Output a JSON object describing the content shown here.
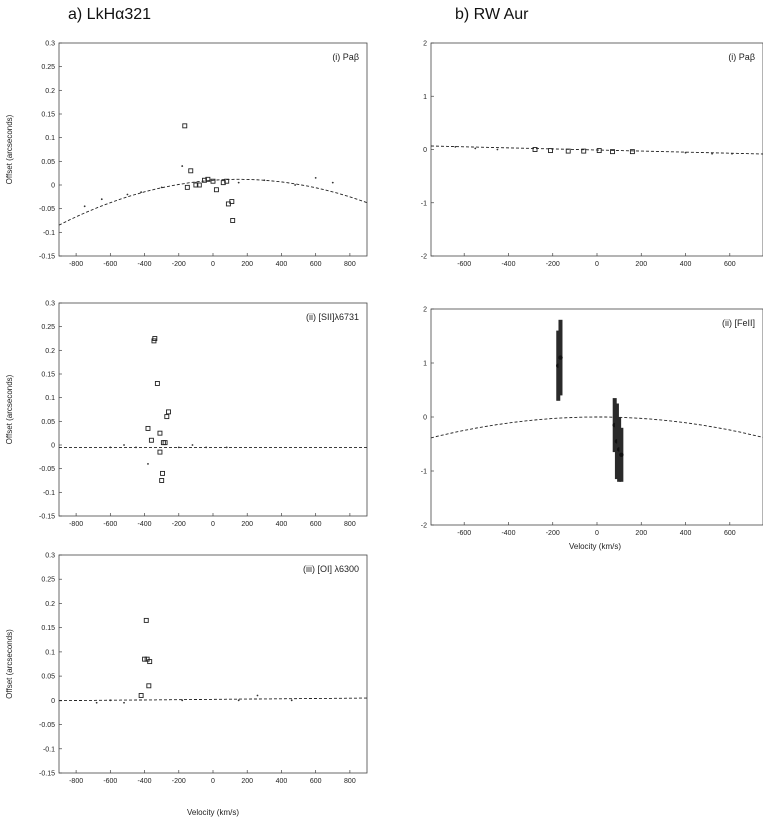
{
  "headings": {
    "left": "a) LkHα321",
    "right": "b) RW Aur"
  },
  "bottom_xlabel": "Velocity (km/s)",
  "chart_data": [
    {
      "id": "a-i",
      "type": "scatter",
      "label": "(i) Paβ",
      "ylabel": "Offset (arcseconds)",
      "xlabel": "",
      "xlim": [
        -900,
        900
      ],
      "ylim": [
        -0.15,
        0.3
      ],
      "xticks": [
        -800,
        -600,
        -400,
        -200,
        0,
        200,
        400,
        600,
        800
      ],
      "yticks": [
        -0.15,
        -0.1,
        -0.05,
        0,
        0.05,
        0.1,
        0.15,
        0.2,
        0.25,
        0.3
      ],
      "fit_curve": {
        "style": "dashed",
        "a": -8.78e-08,
        "b": 2.63e-05,
        "c": 0.01
      },
      "series": [
        {
          "marker": "square",
          "x": [
            -165,
            -150,
            -130,
            -100,
            -80,
            -50,
            -30,
            0,
            20,
            60,
            80,
            90,
            110,
            115
          ],
          "y": [
            0.125,
            -0.005,
            0.03,
            0.0,
            0.0,
            0.01,
            0.012,
            0.008,
            -0.01,
            0.005,
            0.008,
            -0.04,
            -0.035,
            -0.075
          ]
        },
        {
          "marker": "dot",
          "x": [
            -750,
            -650,
            -500,
            -420,
            -300,
            -180,
            -100,
            150,
            300,
            480,
            600,
            700
          ],
          "y": [
            -0.045,
            -0.03,
            -0.02,
            -0.015,
            -0.005,
            0.04,
            0.005,
            0.005,
            0.01,
            0.0,
            0.015,
            0.005
          ]
        }
      ]
    },
    {
      "id": "a-ii",
      "type": "scatter",
      "label": "(ii) [SII]λ6731",
      "ylabel": "Offset (arcseconds)",
      "xlabel": "",
      "xlim": [
        -900,
        900
      ],
      "ylim": [
        -0.15,
        0.3
      ],
      "xticks": [
        -800,
        -600,
        -400,
        -200,
        0,
        200,
        400,
        600,
        800
      ],
      "yticks": [
        -0.15,
        -0.1,
        -0.05,
        0,
        0.05,
        0.1,
        0.15,
        0.2,
        0.25,
        0.3
      ],
      "fit_curve": {
        "style": "dashed",
        "a": 0,
        "b": 0,
        "c": -0.005
      },
      "series": [
        {
          "marker": "square",
          "x": [
            -345,
            -340,
            -325,
            -380,
            -360,
            -310,
            -290,
            -270,
            -260,
            -310,
            -300,
            -295,
            -280
          ],
          "y": [
            0.22,
            0.225,
            0.13,
            0.035,
            0.01,
            0.025,
            0.005,
            0.06,
            0.07,
            -0.015,
            -0.075,
            -0.06,
            0.005
          ]
        },
        {
          "marker": "dot",
          "x": [
            -600,
            -520,
            -450,
            -380,
            -200,
            -120,
            -40,
            80
          ],
          "y": [
            -0.005,
            0.0,
            -0.005,
            -0.04,
            -0.005,
            0.0,
            -0.005,
            -0.005
          ]
        }
      ]
    },
    {
      "id": "a-iii",
      "type": "scatter",
      "label": "(iii) [OI] λ6300",
      "ylabel": "Offset (arcseconds)",
      "xlabel": "",
      "xlim": [
        -900,
        900
      ],
      "ylim": [
        -0.15,
        0.3
      ],
      "xticks": [
        -800,
        -600,
        -400,
        -200,
        0,
        200,
        400,
        600,
        800
      ],
      "yticks": [
        -0.15,
        -0.1,
        -0.05,
        0,
        0.05,
        0.1,
        0.15,
        0.2,
        0.25,
        0.3
      ],
      "fit_curve": {
        "style": "dashed",
        "a": 0,
        "b": 3e-06,
        "c": 0.002
      },
      "series": [
        {
          "marker": "square",
          "x": [
            -390,
            -400,
            -385,
            -370,
            -375,
            -420
          ],
          "y": [
            0.165,
            0.085,
            0.085,
            0.08,
            0.03,
            0.01
          ]
        },
        {
          "marker": "dot",
          "x": [
            -680,
            -600,
            -520,
            -180,
            150,
            260,
            460
          ],
          "y": [
            -0.005,
            0.0,
            -0.005,
            0.0,
            0.0,
            0.01,
            0.0
          ]
        }
      ]
    },
    {
      "id": "b-i",
      "type": "scatter",
      "label": "(i) Paβ",
      "ylabel": "",
      "xlabel": "",
      "xlim": [
        -750,
        750
      ],
      "ylim": [
        -2,
        2
      ],
      "xticks": [
        -600,
        -400,
        -200,
        0,
        200,
        400,
        600
      ],
      "yticks": [
        -2,
        -1,
        0,
        1,
        2
      ],
      "fit_curve": {
        "style": "dashed",
        "a": 0,
        "b": -0.0001,
        "c": -0.01
      },
      "series": [
        {
          "marker": "square",
          "x": [
            -280,
            -210,
            -130,
            -60,
            10,
            70,
            160
          ],
          "y": [
            0.0,
            -0.02,
            -0.03,
            -0.03,
            -0.02,
            -0.04,
            -0.04
          ]
        },
        {
          "marker": "dot",
          "x": [
            -640,
            -550,
            -450,
            400,
            520,
            610
          ],
          "y": [
            0.05,
            0.02,
            0.0,
            -0.06,
            -0.08,
            -0.08
          ]
        }
      ]
    },
    {
      "id": "b-ii",
      "type": "scatter",
      "label": "(ii) [FeII]",
      "ylabel": "",
      "xlabel": "",
      "xlim": [
        -750,
        750
      ],
      "ylim": [
        -2,
        2
      ],
      "xticks": [
        -600,
        -400,
        -200,
        0,
        200,
        400,
        600
      ],
      "yticks": [
        -2,
        -1,
        0,
        1,
        2
      ],
      "fit_curve": {
        "style": "dashed",
        "a": -6.8e-07,
        "b": 5.4e-06,
        "c": 0.0
      },
      "series": [
        {
          "marker": "errorbar",
          "x": [
            -175,
            -165,
            80,
            90,
            100,
            110
          ],
          "y": [
            0.95,
            1.1,
            -0.15,
            -0.45,
            -0.6,
            -0.7
          ],
          "yerr": [
            0.65,
            0.7,
            0.5,
            0.7,
            0.6,
            0.5
          ]
        }
      ]
    }
  ]
}
